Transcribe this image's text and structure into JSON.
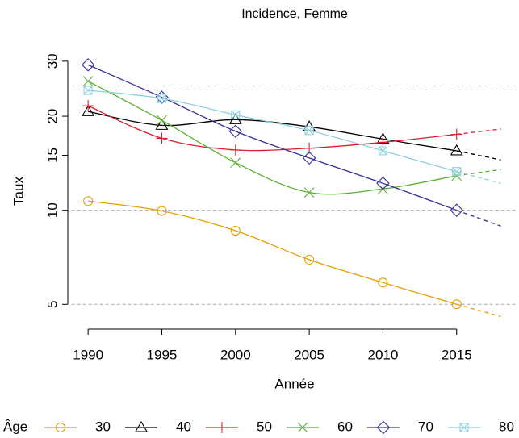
{
  "chart_data": {
    "type": "line",
    "title": "Incidence, Femme",
    "x_label": "Année",
    "y_label": "Taux",
    "log_scale": "y",
    "legend_title": "Âge",
    "legend_position": "bottom",
    "x": [
      1990,
      1995,
      2000,
      2005,
      2010,
      2015
    ],
    "projection_x": 2018,
    "xlim": [
      1988.88,
      2019.12
    ],
    "xticks": [
      1990,
      1995,
      2000,
      2005,
      2010,
      2015
    ],
    "ylim": [
      4.5,
      32
    ],
    "yticks": [
      5,
      10,
      15,
      20,
      30
    ],
    "reference_lines": [
      5,
      10,
      25
    ],
    "series": [
      {
        "name": "30",
        "color": "#e69f00",
        "marker": "circle",
        "values": [
          10.7,
          9.95,
          8.6,
          6.95,
          5.87,
          5.0
        ],
        "projection": 4.57
      },
      {
        "name": "40",
        "color": "#000000",
        "marker": "triangle",
        "values": [
          20.7,
          18.7,
          19.5,
          18.5,
          16.9,
          15.5
        ],
        "projection": 14.5
      },
      {
        "name": "50",
        "color": "#dd1c2a",
        "marker": "plus",
        "values": [
          21.6,
          17.0,
          15.6,
          15.8,
          16.5,
          17.5
        ],
        "projection": 18.2
      },
      {
        "name": "60",
        "color": "#5ab031",
        "marker": "cross",
        "values": [
          25.9,
          19.4,
          14.2,
          11.4,
          11.7,
          12.9
        ],
        "projection": 13.5
      },
      {
        "name": "70",
        "color": "#35309a",
        "marker": "diamond",
        "values": [
          29.2,
          23.0,
          17.9,
          14.7,
          12.2,
          10.0
        ],
        "projection": 8.9
      },
      {
        "name": "80",
        "color": "#8ecfdc",
        "marker": "boxcross",
        "values": [
          24.2,
          22.8,
          20.2,
          18.0,
          15.5,
          13.3
        ],
        "projection": 12.2
      }
    ]
  }
}
